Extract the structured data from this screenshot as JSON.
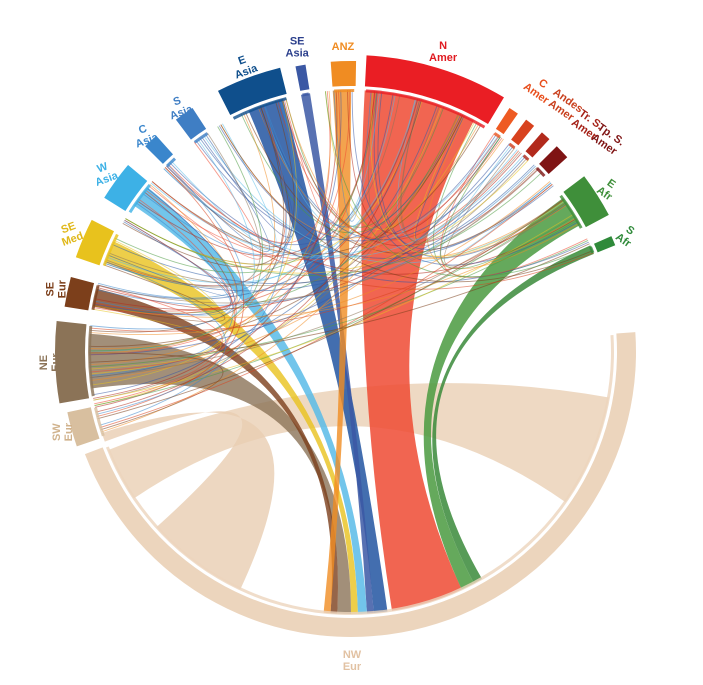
{
  "chart_data": {
    "type": "chord",
    "regions": [
      {
        "key": "nw_eur",
        "label_lines": [
          "NW",
          "Eur"
        ],
        "color": "#ecd5bd",
        "label_color": "#e2c2a3"
      },
      {
        "key": "sw_eur",
        "label_lines": [
          "SW",
          "Eur"
        ],
        "color": "#d8bf9f",
        "label_color": "#d0b28c"
      },
      {
        "key": "ne_eur",
        "label_lines": [
          "NE",
          "Eur"
        ],
        "color": "#8b7357",
        "label_color": "#8b7357"
      },
      {
        "key": "se_eur",
        "label_lines": [
          "SE",
          "Eur"
        ],
        "color": "#7c3f1b",
        "label_color": "#7c3f1b"
      },
      {
        "key": "se_med",
        "label_lines": [
          "SE",
          "Med"
        ],
        "color": "#e8c21d",
        "label_color": "#e0b81a"
      },
      {
        "key": "w_asia",
        "label_lines": [
          "W",
          "Asia"
        ],
        "color": "#3db1e6",
        "label_color": "#3db1e6"
      },
      {
        "key": "c_asia",
        "label_lines": [
          "C",
          "Asia"
        ],
        "color": "#3a86cc",
        "label_color": "#3a86cc"
      },
      {
        "key": "s_asia",
        "label_lines": [
          "S",
          "Asia"
        ],
        "color": "#3f7ec4",
        "label_color": "#3f7ec4"
      },
      {
        "key": "e_asia",
        "label_lines": [
          "E",
          "Asia"
        ],
        "color": "#0f4f8c",
        "label_color": "#0f4f8c"
      },
      {
        "key": "se_asia",
        "label_lines": [
          "SE",
          "Asia"
        ],
        "color": "#3b58a4",
        "label_color": "#2b3f8c"
      },
      {
        "key": "anz",
        "label_lines": [
          "ANZ"
        ],
        "color": "#f08c22",
        "label_color": "#f08c22"
      },
      {
        "key": "n_amer",
        "label_lines": [
          "N",
          "Amer"
        ],
        "color": "#ea1e24",
        "label_color": "#e01a20"
      },
      {
        "key": "c_amer",
        "label_lines": [
          "C",
          "Amer"
        ],
        "color": "#ee5a22",
        "label_color": "#e84e1c"
      },
      {
        "key": "andes",
        "label_lines": [
          "Andes",
          "Amer"
        ],
        "color": "#d8421e",
        "label_color": "#c9401e"
      },
      {
        "key": "tr_s_amer",
        "label_lines": [
          "Tr. S.",
          "Amer"
        ],
        "color": "#b22a1c",
        "label_color": "#a52218"
      },
      {
        "key": "tp_s_amer",
        "label_lines": [
          "Tp. S.",
          "Amer"
        ],
        "color": "#7f1414",
        "label_color": "#7f1414"
      },
      {
        "key": "e_afr",
        "label_lines": [
          "E",
          "Afr"
        ],
        "color": "#3f8f3a",
        "label_color": "#3f8f3a"
      },
      {
        "key": "s_afr",
        "label_lines": [
          "S",
          "Afr"
        ],
        "color": "#2f8a3a",
        "label_color": "#2f8a3a"
      }
    ]
  }
}
